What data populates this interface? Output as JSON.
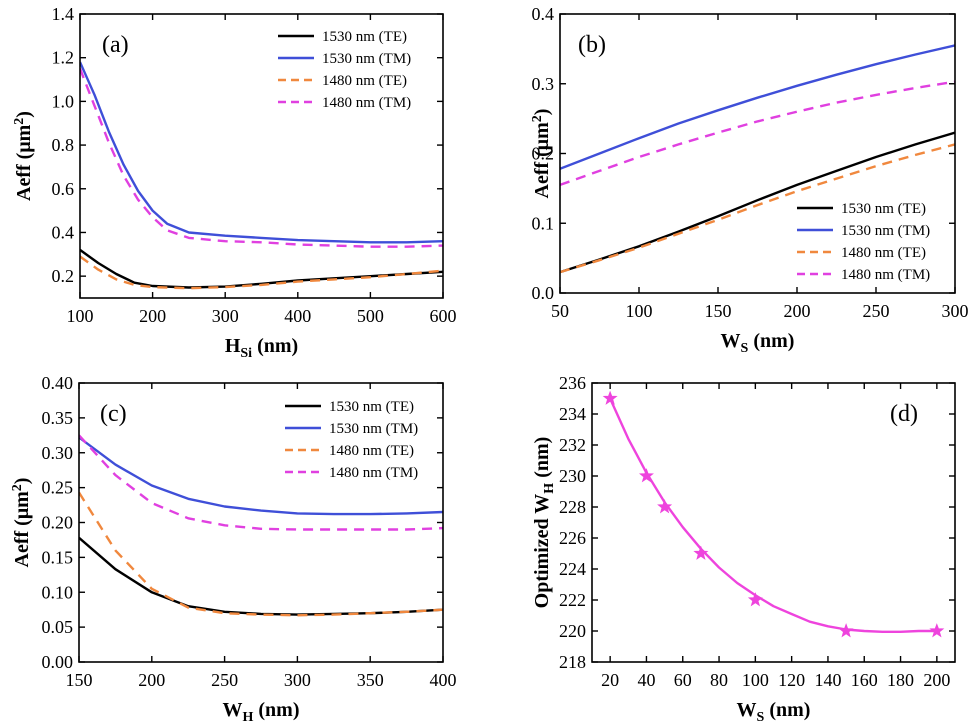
{
  "chart_data": [
    {
      "panel_label": "(a)",
      "type": "line",
      "xlabel": "H",
      "xlabel_sub": "Si",
      "xlabel_suffix": " (nm)",
      "ylabel": "Aeff (μm",
      "ylabel_sup": "2",
      "ylabel_suffix": ")",
      "xlim": [
        100,
        600
      ],
      "ylim": [
        0.1,
        1.4
      ],
      "xticks": [
        100,
        200,
        300,
        400,
        500,
        600
      ],
      "yticks": [
        0.2,
        0.4,
        0.6,
        0.8,
        1.0,
        1.2,
        1.4
      ],
      "ytick_labels": [
        "0.2",
        "0.4",
        "0.6",
        "0.8",
        "1.0",
        "1.2",
        "1.4"
      ],
      "legend_position": "top-right",
      "series": [
        {
          "name": "1530 nm (TE)",
          "color": "#000000",
          "dash": "solid",
          "x": [
            100,
            125,
            150,
            175,
            200,
            250,
            300,
            350,
            400,
            450,
            500,
            550,
            600
          ],
          "y": [
            0.32,
            0.26,
            0.21,
            0.17,
            0.155,
            0.148,
            0.152,
            0.165,
            0.18,
            0.19,
            0.2,
            0.21,
            0.22
          ]
        },
        {
          "name": "1530 nm (TM)",
          "color": "#3f4fd8",
          "dash": "solid",
          "x": [
            100,
            120,
            140,
            160,
            180,
            200,
            220,
            250,
            300,
            350,
            400,
            450,
            500,
            550,
            600
          ],
          "y": [
            1.18,
            1.03,
            0.86,
            0.71,
            0.59,
            0.5,
            0.44,
            0.4,
            0.385,
            0.375,
            0.365,
            0.36,
            0.355,
            0.355,
            0.36
          ]
        },
        {
          "name": "1480 nm (TE)",
          "color": "#f0883e",
          "dash": "dashed",
          "x": [
            100,
            125,
            150,
            175,
            200,
            250,
            300,
            350,
            400,
            450,
            500,
            550,
            600
          ],
          "y": [
            0.29,
            0.23,
            0.185,
            0.16,
            0.15,
            0.145,
            0.15,
            0.16,
            0.175,
            0.185,
            0.195,
            0.21,
            0.225
          ]
        },
        {
          "name": "1480 nm (TM)",
          "color": "#e040e0",
          "dash": "dashed",
          "x": [
            100,
            120,
            140,
            160,
            180,
            200,
            220,
            250,
            300,
            350,
            400,
            450,
            500,
            550,
            600
          ],
          "y": [
            1.15,
            0.98,
            0.81,
            0.66,
            0.55,
            0.47,
            0.41,
            0.375,
            0.36,
            0.355,
            0.345,
            0.34,
            0.335,
            0.335,
            0.34
          ]
        }
      ]
    },
    {
      "panel_label": "(b)",
      "type": "line",
      "xlabel": "W",
      "xlabel_sub": "S",
      "xlabel_suffix": " (nm)",
      "ylabel": "Aeff (μm",
      "ylabel_sup": "2",
      "ylabel_suffix": ")",
      "xlim": [
        50,
        300
      ],
      "ylim": [
        0.0,
        0.4
      ],
      "xticks": [
        50,
        100,
        150,
        200,
        250,
        300
      ],
      "yticks": [
        0.0,
        0.1,
        0.2,
        0.3,
        0.4
      ],
      "ytick_labels": [
        "0.0",
        "0.1",
        "0.2",
        "0.3",
        "0.4"
      ],
      "legend_position": "bottom-right",
      "series": [
        {
          "name": "1530 nm (TE)",
          "color": "#000000",
          "dash": "solid",
          "x": [
            50,
            75,
            100,
            125,
            150,
            175,
            200,
            225,
            250,
            275,
            300
          ],
          "y": [
            0.03,
            0.048,
            0.067,
            0.088,
            0.11,
            0.133,
            0.155,
            0.175,
            0.195,
            0.213,
            0.23
          ]
        },
        {
          "name": "1530 nm (TM)",
          "color": "#3f4fd8",
          "dash": "solid",
          "x": [
            50,
            75,
            100,
            125,
            150,
            175,
            200,
            225,
            250,
            275,
            300
          ],
          "y": [
            0.178,
            0.2,
            0.222,
            0.243,
            0.262,
            0.28,
            0.297,
            0.313,
            0.328,
            0.342,
            0.355
          ]
        },
        {
          "name": "1480 nm (TE)",
          "color": "#f0883e",
          "dash": "dashed",
          "x": [
            50,
            75,
            100,
            125,
            150,
            175,
            200,
            225,
            250,
            275,
            300
          ],
          "y": [
            0.03,
            0.047,
            0.065,
            0.085,
            0.105,
            0.126,
            0.146,
            0.164,
            0.182,
            0.198,
            0.213
          ]
        },
        {
          "name": "1480 nm (TM)",
          "color": "#e040e0",
          "dash": "dashed",
          "x": [
            50,
            75,
            100,
            125,
            150,
            175,
            200,
            225,
            250,
            275,
            300
          ],
          "y": [
            0.155,
            0.175,
            0.195,
            0.213,
            0.23,
            0.246,
            0.26,
            0.273,
            0.284,
            0.294,
            0.303
          ]
        }
      ]
    },
    {
      "panel_label": "(c)",
      "type": "line",
      "xlabel": "W",
      "xlabel_sub": "H",
      "xlabel_suffix": " (nm)",
      "ylabel": "Aeff (μm",
      "ylabel_sup": "2",
      "ylabel_suffix": ")",
      "xlim": [
        150,
        400
      ],
      "ylim": [
        0.0,
        0.4
      ],
      "xticks": [
        150,
        200,
        250,
        300,
        350,
        400
      ],
      "yticks": [
        0.0,
        0.05,
        0.1,
        0.15,
        0.2,
        0.25,
        0.3,
        0.35,
        0.4
      ],
      "ytick_labels": [
        "0.00",
        "0.05",
        "0.10",
        "0.15",
        "0.20",
        "0.25",
        "0.30",
        "0.35",
        "0.40"
      ],
      "legend_position": "top-right",
      "series": [
        {
          "name": "1530 nm (TE)",
          "color": "#000000",
          "dash": "solid",
          "x": [
            150,
            175,
            200,
            225,
            250,
            275,
            300,
            325,
            350,
            375,
            400
          ],
          "y": [
            0.178,
            0.133,
            0.1,
            0.08,
            0.072,
            0.069,
            0.068,
            0.069,
            0.07,
            0.072,
            0.075
          ]
        },
        {
          "name": "1530 nm (TM)",
          "color": "#3f4fd8",
          "dash": "solid",
          "x": [
            150,
            175,
            200,
            225,
            250,
            275,
            300,
            325,
            350,
            375,
            400
          ],
          "y": [
            0.322,
            0.283,
            0.253,
            0.234,
            0.223,
            0.217,
            0.213,
            0.212,
            0.212,
            0.213,
            0.215
          ]
        },
        {
          "name": "1480 nm (TE)",
          "color": "#f0883e",
          "dash": "dashed",
          "x": [
            150,
            175,
            200,
            225,
            250,
            275,
            300,
            325,
            350,
            375,
            400
          ],
          "y": [
            0.243,
            0.16,
            0.105,
            0.078,
            0.07,
            0.068,
            0.067,
            0.068,
            0.07,
            0.072,
            0.075
          ]
        },
        {
          "name": "1480 nm (TM)",
          "color": "#e040e0",
          "dash": "dashed",
          "x": [
            150,
            175,
            200,
            225,
            250,
            275,
            300,
            325,
            350,
            375,
            400
          ],
          "y": [
            0.325,
            0.268,
            0.228,
            0.206,
            0.196,
            0.191,
            0.19,
            0.19,
            0.19,
            0.19,
            0.192
          ]
        }
      ]
    },
    {
      "panel_label": "(d)",
      "type": "scatter",
      "xlabel": "W",
      "xlabel_sub": "S",
      "xlabel_suffix": " (nm)",
      "ylabel": "Optimized W",
      "ylabel_sub": "H",
      "ylabel_suffix": " (nm)",
      "xlim": [
        10,
        210
      ],
      "ylim": [
        218,
        236
      ],
      "xticks": [
        20,
        40,
        60,
        80,
        100,
        120,
        140,
        160,
        180,
        200
      ],
      "yticks": [
        218,
        220,
        222,
        224,
        226,
        228,
        230,
        232,
        234,
        236
      ],
      "ytick_labels": [
        "218",
        "220",
        "222",
        "224",
        "226",
        "228",
        "230",
        "232",
        "234",
        "236"
      ],
      "series": [
        {
          "color": "#ee44dd",
          "marker": "star",
          "x": [
            20,
            40,
            50,
            70,
            100,
            150,
            200
          ],
          "y": [
            235,
            230,
            228,
            225,
            222,
            220,
            220
          ]
        },
        {
          "color": "#ee44dd",
          "dash": "solid",
          "x": [
            20,
            30,
            40,
            50,
            60,
            70,
            80,
            90,
            100,
            110,
            120,
            130,
            140,
            150,
            160,
            170,
            180,
            190,
            200
          ],
          "y": [
            235,
            232.4,
            230.2,
            228.3,
            226.7,
            225.3,
            224.1,
            223.1,
            222.3,
            221.6,
            221.1,
            220.6,
            220.3,
            220.1,
            220,
            219.95,
            219.95,
            220,
            220
          ]
        }
      ]
    }
  ]
}
